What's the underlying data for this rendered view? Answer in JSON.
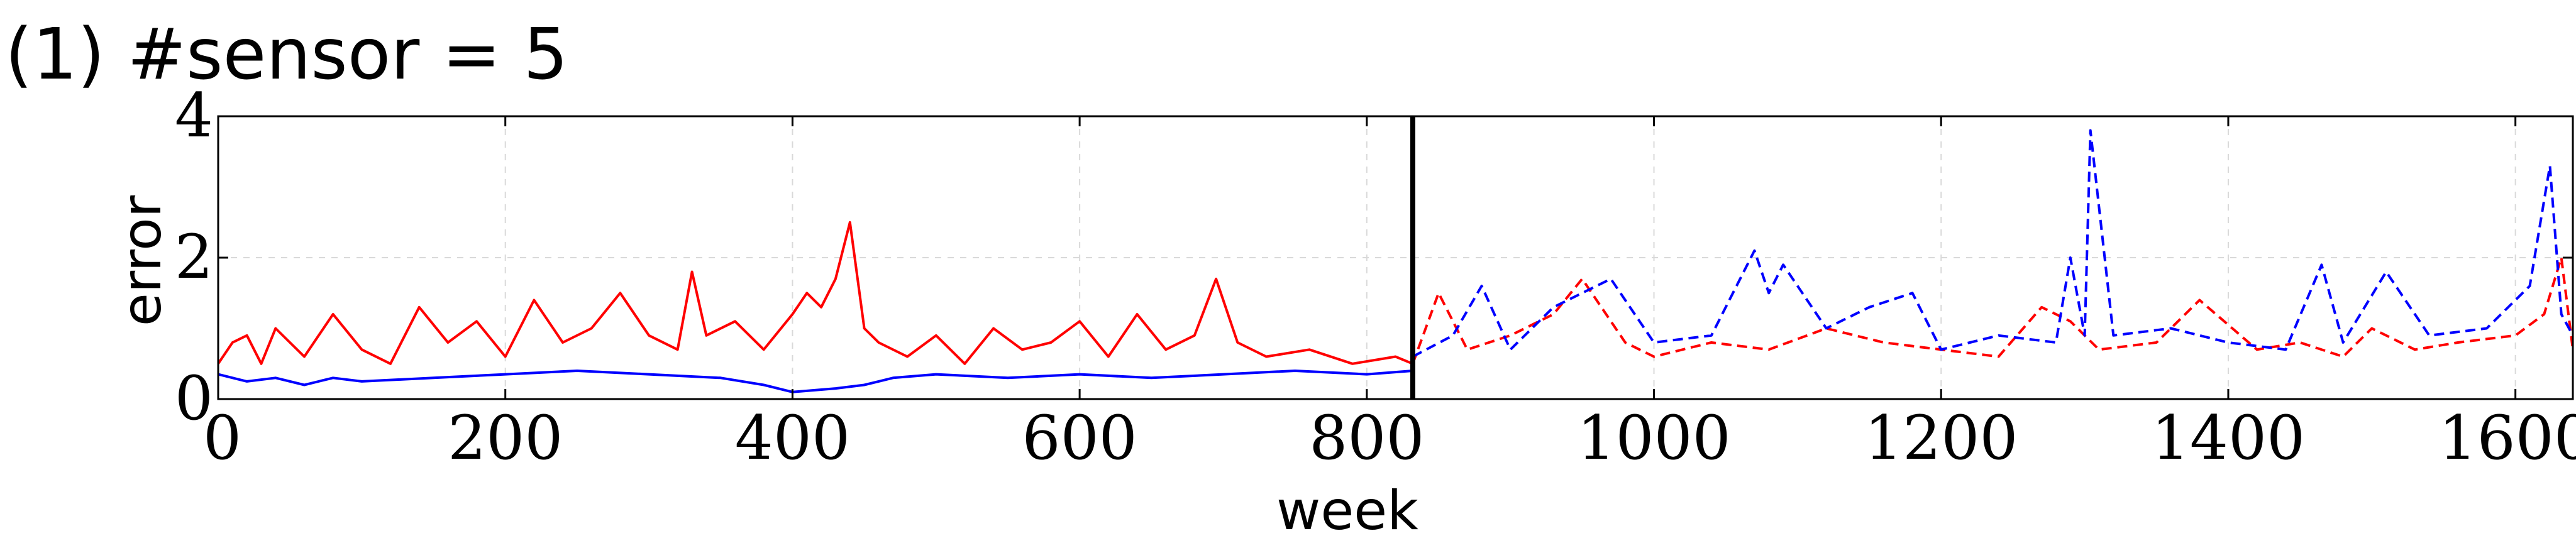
{
  "chart_data": {
    "type": "line",
    "title": "(1) #sensor = 5",
    "xlabel": "week",
    "ylabel": "error",
    "xlim": [
      0,
      1640
    ],
    "ylim": [
      0,
      4
    ],
    "xticks": [
      0,
      200,
      400,
      600,
      800,
      1000,
      1200,
      1400,
      1600
    ],
    "yticks": [
      0,
      2,
      4
    ],
    "grid": true,
    "split_x": 832,
    "series": [
      {
        "color": "#ff0000",
        "style": "solid",
        "x": [
          0,
          10,
          20,
          30,
          40,
          60,
          80,
          100,
          120,
          140,
          160,
          180,
          200,
          220,
          240,
          260,
          280,
          300,
          320,
          330,
          340,
          360,
          380,
          400,
          410,
          420,
          430,
          440,
          450,
          460,
          480,
          500,
          520,
          540,
          560,
          580,
          600,
          620,
          640,
          660,
          680,
          695,
          710,
          730,
          760,
          790,
          820,
          832
        ],
        "values": [
          0.5,
          0.8,
          0.9,
          0.5,
          1.0,
          0.6,
          1.2,
          0.7,
          0.5,
          1.3,
          0.8,
          1.1,
          0.6,
          1.4,
          0.8,
          1.0,
          1.5,
          0.9,
          0.7,
          1.8,
          0.9,
          1.1,
          0.7,
          1.2,
          1.5,
          1.3,
          1.7,
          2.5,
          1.0,
          0.8,
          0.6,
          0.9,
          0.5,
          1.0,
          0.7,
          0.8,
          1.1,
          0.6,
          1.2,
          0.7,
          0.9,
          1.7,
          0.8,
          0.6,
          0.7,
          0.5,
          0.6,
          0.5
        ]
      },
      {
        "color": "#0000ff",
        "style": "solid",
        "x": [
          0,
          20,
          40,
          60,
          80,
          100,
          150,
          200,
          250,
          300,
          350,
          380,
          400,
          430,
          450,
          470,
          500,
          550,
          600,
          650,
          700,
          750,
          800,
          832
        ],
        "values": [
          0.35,
          0.25,
          0.3,
          0.2,
          0.3,
          0.25,
          0.3,
          0.35,
          0.4,
          0.35,
          0.3,
          0.2,
          0.1,
          0.15,
          0.2,
          0.3,
          0.35,
          0.3,
          0.35,
          0.3,
          0.35,
          0.4,
          0.35,
          0.4
        ]
      },
      {
        "color": "#ff0000",
        "style": "dashed",
        "x": [
          832,
          850,
          870,
          900,
          930,
          950,
          980,
          1000,
          1040,
          1080,
          1120,
          1160,
          1200,
          1240,
          1270,
          1290,
          1310,
          1350,
          1380,
          1420,
          1450,
          1480,
          1500,
          1530,
          1560,
          1600,
          1620,
          1632,
          1640
        ],
        "values": [
          0.5,
          1.5,
          0.7,
          0.9,
          1.2,
          1.7,
          0.8,
          0.6,
          0.8,
          0.7,
          1.0,
          0.8,
          0.7,
          0.6,
          1.3,
          1.1,
          0.7,
          0.8,
          1.4,
          0.7,
          0.8,
          0.6,
          1.0,
          0.7,
          0.8,
          0.9,
          1.2,
          2.0,
          0.7
        ]
      },
      {
        "color": "#0000ff",
        "style": "dashed",
        "x": [
          832,
          860,
          880,
          900,
          930,
          970,
          1000,
          1040,
          1070,
          1080,
          1090,
          1120,
          1150,
          1180,
          1200,
          1240,
          1280,
          1290,
          1300,
          1304,
          1320,
          1360,
          1400,
          1440,
          1465,
          1480,
          1510,
          1540,
          1580,
          1610,
          1624,
          1632,
          1640
        ],
        "values": [
          0.6,
          0.9,
          1.6,
          0.7,
          1.3,
          1.7,
          0.8,
          0.9,
          2.1,
          1.5,
          1.9,
          1.0,
          1.3,
          1.5,
          0.7,
          0.9,
          0.8,
          2.0,
          0.9,
          3.8,
          0.9,
          1.0,
          0.8,
          0.7,
          1.9,
          0.8,
          1.8,
          0.9,
          1.0,
          1.6,
          3.3,
          1.2,
          0.9
        ]
      }
    ]
  }
}
